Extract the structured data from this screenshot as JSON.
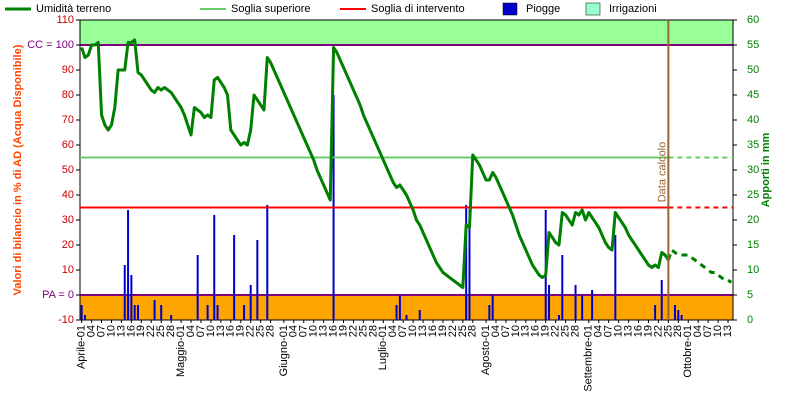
{
  "chart_data": {
    "type": "combo",
    "ylabel": "Valori di bilancio in % di AD (Acqua Disponibile)",
    "y2label": "Apporti in mm",
    "ylim": [
      -10,
      110
    ],
    "yticks": [
      -10,
      {
        "value": 0,
        "label": "PA = 0"
      },
      10,
      20,
      30,
      40,
      50,
      60,
      70,
      80,
      90,
      {
        "value": 100,
        "label": "CC = 100"
      },
      110
    ],
    "y2lim": [
      0,
      60
    ],
    "y2ticks": [
      0,
      5,
      10,
      15,
      20,
      25,
      30,
      35,
      40,
      45,
      50,
      55,
      60
    ],
    "bands": [
      {
        "from": 100,
        "to": 110,
        "color": "#99ff99"
      },
      {
        "from": -10,
        "to": 0,
        "color": "#ffa500"
      }
    ],
    "reference_lines": [
      {
        "value": 100,
        "color": "#800080"
      },
      {
        "value": 0,
        "color": "#800080"
      }
    ],
    "annotation": {
      "text": "Data calcolo",
      "x": 177,
      "color": "#996633"
    },
    "categories": [
      "Aprile-01",
      null,
      null,
      "04",
      null,
      null,
      "07",
      null,
      null,
      "10",
      null,
      null,
      "13",
      null,
      null,
      "16",
      null,
      null,
      "19",
      null,
      null,
      "22",
      null,
      null,
      "25",
      null,
      null,
      "28",
      null,
      null,
      "Maggio-01",
      null,
      null,
      "04",
      null,
      null,
      "07",
      null,
      null,
      "10",
      null,
      null,
      "13",
      null,
      null,
      "16",
      null,
      null,
      "19",
      null,
      null,
      "22",
      null,
      null,
      "25",
      null,
      null,
      "28",
      null,
      null,
      null,
      "Giugno-01",
      null,
      null,
      "04",
      null,
      null,
      "07",
      null,
      null,
      "10",
      null,
      null,
      "13",
      null,
      null,
      "16",
      null,
      null,
      "19",
      null,
      null,
      "22",
      null,
      null,
      "25",
      null,
      null,
      "28",
      null,
      null,
      "Luglio-01",
      null,
      null,
      "04",
      null,
      null,
      "07",
      null,
      null,
      "10",
      null,
      null,
      "13",
      null,
      null,
      "16",
      null,
      null,
      "19",
      null,
      null,
      "22",
      null,
      null,
      "25",
      null,
      null,
      "28",
      null,
      null,
      null,
      "Agosto-01",
      null,
      null,
      "04",
      null,
      null,
      "07",
      null,
      null,
      "10",
      null,
      null,
      "13",
      null,
      null,
      "16",
      null,
      null,
      "19",
      null,
      null,
      "22",
      null,
      null,
      "25",
      null,
      null,
      "28",
      null,
      null,
      null,
      "Settembre-01",
      null,
      null,
      "04",
      null,
      null,
      "07",
      null,
      null,
      "10",
      null,
      null,
      "13",
      null,
      null,
      "16",
      null,
      null,
      "19",
      null,
      null,
      "22",
      null,
      null,
      "25",
      null,
      null,
      "28",
      null,
      null,
      "Ottobre-01",
      null,
      null,
      "04",
      null,
      null,
      "07",
      null,
      null,
      "10",
      null,
      null,
      "13",
      null
    ],
    "series": [
      {
        "name": "Umidità terreno",
        "type": "line",
        "color": "#008000",
        "values": [
          99,
          95,
          96,
          100,
          100,
          101,
          72,
          68,
          66,
          68,
          75,
          90,
          90,
          90,
          101,
          101,
          102,
          89,
          88,
          86,
          84,
          82,
          81,
          83,
          82,
          83,
          82,
          81,
          79,
          77,
          75,
          72,
          68,
          64,
          75,
          74,
          73,
          71,
          72,
          71,
          86,
          87,
          85,
          83,
          80,
          66,
          64,
          62,
          60,
          61,
          60,
          66,
          80,
          78,
          76,
          74,
          95,
          93,
          90,
          87,
          84,
          81,
          78,
          75,
          72,
          69,
          66,
          63,
          60,
          57,
          54,
          50,
          47,
          44,
          41,
          38,
          99,
          97,
          94,
          91,
          88,
          85,
          82,
          79,
          76,
          72,
          69,
          66,
          63,
          60,
          57,
          54,
          51,
          48,
          45,
          43,
          44,
          42,
          40,
          37,
          34,
          30,
          28,
          25,
          22,
          19,
          16,
          13,
          11,
          9,
          8,
          7,
          6,
          5,
          4,
          3,
          28,
          27,
          56,
          54,
          52,
          49,
          46,
          46,
          49,
          47,
          44,
          41,
          38,
          35,
          32,
          28,
          24,
          21,
          18,
          15,
          12,
          10,
          8,
          7,
          8,
          25,
          23,
          21,
          20,
          33,
          32,
          30,
          28,
          33,
          32,
          34,
          30,
          33,
          31,
          29,
          27,
          24,
          21,
          19,
          18,
          33,
          31,
          29,
          27,
          24,
          22,
          20,
          18,
          16,
          14,
          12,
          11,
          12,
          11,
          17,
          16,
          14,
          18,
          17,
          16,
          16,
          16,
          16,
          15,
          14,
          13,
          12,
          11,
          10,
          9,
          9,
          8,
          7,
          6,
          6,
          5
        ]
      },
      {
        "name": "Soglia superiore",
        "type": "hline",
        "color": "#66cc66",
        "value": 55
      },
      {
        "name": "Soglia di intervento",
        "type": "hline",
        "color": "#ff0000",
        "value": 35
      },
      {
        "name": "Piogge",
        "type": "bar",
        "axis": "y2",
        "color": "#0000cc",
        "values": [
          3,
          1,
          0,
          0,
          0,
          0,
          0,
          0,
          0,
          0,
          0,
          0,
          0,
          11,
          22,
          9,
          3,
          3,
          0,
          0,
          0,
          0,
          4,
          0,
          3,
          0,
          0,
          1,
          0,
          0,
          0,
          0,
          0,
          0,
          0,
          13,
          0,
          0,
          3,
          0,
          21,
          3,
          0,
          0,
          0,
          0,
          17,
          0,
          0,
          3,
          0,
          7,
          0,
          16,
          0,
          0,
          23,
          0,
          0,
          0,
          0,
          0,
          0,
          0,
          0,
          0,
          0,
          0,
          0,
          0,
          0,
          0,
          0,
          0,
          0,
          0,
          45,
          0,
          0,
          0,
          0,
          0,
          0,
          0,
          0,
          0,
          0,
          0,
          0,
          0,
          0,
          0,
          0,
          0,
          0,
          3,
          5,
          0,
          1,
          0,
          0,
          0,
          2,
          0,
          0,
          0,
          0,
          0,
          0,
          0,
          0,
          0,
          0,
          0,
          0,
          0,
          23,
          22,
          0,
          0,
          0,
          0,
          0,
          3,
          5,
          0,
          0,
          0,
          0,
          0,
          0,
          0,
          0,
          0,
          0,
          0,
          0,
          0,
          0,
          0,
          22,
          7,
          0,
          0,
          1,
          13,
          0,
          0,
          0,
          7,
          0,
          5,
          0,
          0,
          6,
          0,
          0,
          0,
          0,
          0,
          0,
          17,
          0,
          0,
          0,
          0,
          0,
          0,
          0,
          0,
          0,
          0,
          0,
          3,
          0,
          8,
          0,
          0,
          0,
          3,
          2,
          1,
          0,
          0,
          0,
          0,
          0,
          0,
          0,
          0,
          0,
          0,
          0,
          0,
          0,
          0,
          0
        ]
      },
      {
        "name": "Irrigazioni",
        "type": "bar",
        "axis": "y2",
        "color": "#99ffcc",
        "values": [
          0,
          0,
          0,
          0,
          0,
          0,
          0,
          0,
          0,
          0,
          0,
          0,
          0,
          0,
          0,
          0,
          0,
          0,
          0,
          0,
          0,
          0,
          0,
          0,
          0,
          0,
          0,
          0,
          0,
          0,
          0,
          0,
          0,
          0,
          0,
          0,
          0,
          0,
          0,
          0,
          0,
          0,
          0,
          0,
          0,
          0,
          0,
          0,
          0,
          0,
          0,
          0,
          0,
          0,
          0,
          0,
          0,
          0,
          0,
          0,
          0,
          0,
          0,
          0,
          0,
          0,
          0,
          0,
          0,
          0,
          0,
          0,
          0,
          0,
          0,
          0,
          0,
          0,
          0,
          0,
          0,
          0,
          0,
          0,
          0,
          0,
          0,
          0,
          0,
          0,
          0,
          0,
          0,
          0,
          0,
          0,
          0,
          0,
          0,
          0,
          0,
          0,
          0,
          0,
          0,
          0,
          0,
          0,
          0,
          0,
          0,
          0,
          0,
          0,
          0,
          0,
          0,
          0,
          0,
          0,
          0,
          0,
          0,
          0,
          0,
          0,
          0,
          0,
          0,
          0,
          0,
          0,
          0,
          0,
          0,
          0,
          0,
          0,
          0,
          0,
          0,
          0,
          0,
          0,
          0,
          0,
          0,
          0,
          0,
          0,
          0,
          0,
          0,
          0,
          0,
          0,
          0,
          0,
          0,
          0,
          0,
          0,
          0,
          0,
          0,
          0,
          0,
          0,
          0,
          0,
          0,
          0,
          0,
          0,
          0,
          0,
          0,
          0,
          0,
          0,
          0,
          0,
          0,
          0,
          0,
          0,
          0,
          0,
          0,
          0,
          0,
          0,
          0,
          0,
          0,
          0,
          0
        ]
      }
    ]
  }
}
